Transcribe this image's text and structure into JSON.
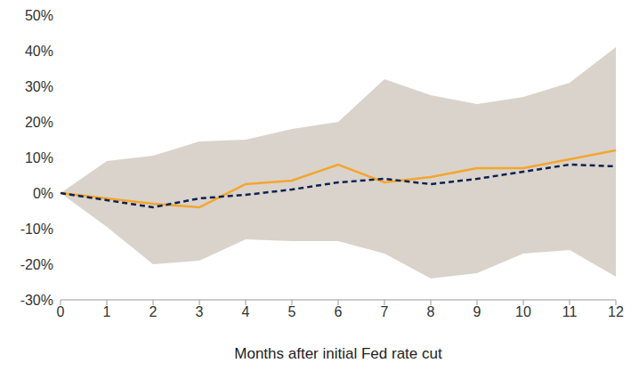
{
  "chart_data": {
    "type": "line",
    "x_label": "Months after initial Fed rate cut",
    "x": [
      0,
      1,
      2,
      3,
      4,
      5,
      6,
      7,
      8,
      9,
      10,
      11,
      12
    ],
    "xlim": [
      0,
      12
    ],
    "xticks": [
      0,
      1,
      2,
      3,
      4,
      5,
      6,
      7,
      8,
      9,
      10,
      11,
      12
    ],
    "ylim": [
      -30,
      50
    ],
    "yticks": [
      {
        "value": -30,
        "label": "-30%"
      },
      {
        "value": -20,
        "label": "-20%"
      },
      {
        "value": -10,
        "label": "-10%"
      },
      {
        "value": 0,
        "label": "0%"
      },
      {
        "value": 10,
        "label": "10%"
      },
      {
        "value": 20,
        "label": "20%"
      },
      {
        "value": 30,
        "label": "30%"
      },
      {
        "value": 40,
        "label": "40%"
      },
      {
        "value": 50,
        "label": "50%"
      }
    ],
    "grid": false,
    "series": [
      {
        "type": "band",
        "color": "#dad3cb",
        "low": [
          0,
          -9.5,
          -20,
          -19,
          -13,
          -13.5,
          -13.5,
          -17,
          -24,
          -22.5,
          -17,
          -16,
          -23.5
        ],
        "high": [
          0,
          9,
          10.5,
          14.5,
          15,
          18,
          20,
          32,
          27.5,
          25,
          27,
          31,
          41
        ]
      },
      {
        "type": "line",
        "color": "#f2a62e",
        "line_style": "solid",
        "values": [
          0,
          -1.5,
          -3,
          -4,
          2.5,
          3.5,
          8,
          3,
          4.5,
          7,
          7,
          9.5,
          12
        ]
      },
      {
        "type": "line",
        "color": "#0d2250",
        "line_style": "dashed",
        "values": [
          0,
          -2,
          -4,
          -1.5,
          -0.5,
          1,
          3,
          4,
          2.5,
          4,
          6,
          8,
          7.5
        ]
      }
    ]
  }
}
